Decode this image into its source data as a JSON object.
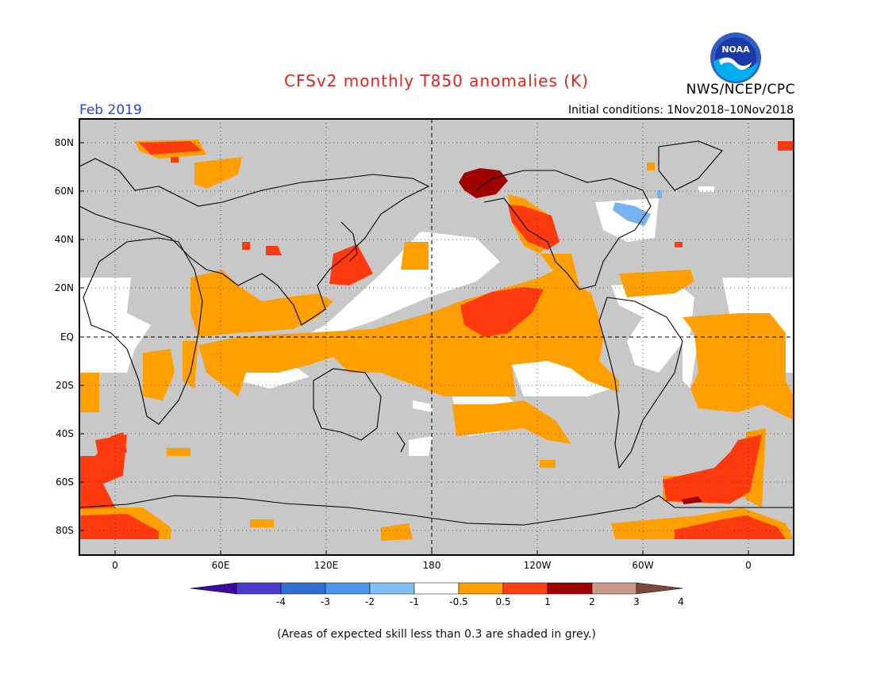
{
  "header": {
    "title": "CFSv2 monthly T850 anomalies (K)",
    "agency": "NWS/NCEP/CPC",
    "logo_text": "NOAA",
    "period": "Feb 2019",
    "initial_conditions": "Initial conditions: 1Nov2018–10Nov2018"
  },
  "map": {
    "projection": "equirectangular",
    "lat_labels": [
      "80N",
      "60N",
      "40N",
      "20N",
      "EQ",
      "20S",
      "40S",
      "60S",
      "80S"
    ],
    "lon_labels": [
      "0",
      "60E",
      "120E",
      "180",
      "120W",
      "60W",
      "0"
    ],
    "background_color": "#c8c8c8",
    "reference_lines": [
      "EQ",
      "180"
    ],
    "anomaly_regions": [
      {
        "region": "Alaska",
        "category": "2 to 3"
      },
      {
        "region": "Eastern Canada",
        "category": "-1 to -0.5"
      },
      {
        "region": "Central Tropical Pacific",
        "category": "1 to 2"
      },
      {
        "region": "Tropical Pacific band",
        "category": "0.5 to 1"
      },
      {
        "region": "Southern Ocean (Atlantic sector)",
        "category": "1 to 2"
      },
      {
        "region": "Weddell Sea",
        "category": "2 to 3"
      }
    ]
  },
  "colorbar": {
    "ticks": [
      "-4",
      "-3",
      "-2",
      "-1",
      "-0.5",
      "0.5",
      "1",
      "2",
      "3",
      "4"
    ],
    "colors": [
      "#3b0aa0",
      "#4a3bcc",
      "#2f6fd6",
      "#4a96ea",
      "#82bff2",
      "#ffffff",
      "#ffa000",
      "#ff4010",
      "#a00000",
      "#c99a88",
      "#7a4a3a"
    ]
  },
  "footer": {
    "note": "(Areas of expected skill less than 0.3 are shaded in grey.)"
  }
}
